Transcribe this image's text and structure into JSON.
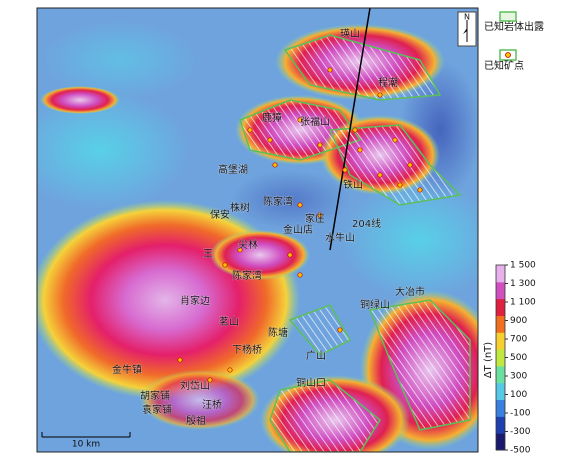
{
  "map": {
    "north": "N",
    "profile_label": "204线",
    "places": [
      "瑛山",
      "程潮",
      "鹿獐",
      "张福山",
      "尖林",
      "高堡湖",
      "铁山",
      "株树",
      "保安",
      "陈家湾",
      "家庄",
      "金山店",
      "水牛山",
      "王",
      "陈家湾",
      "肖家边",
      "茗山",
      "大冶市",
      "铜绿山",
      "陈塘",
      "下杨桥",
      "广山",
      "金牛镇",
      "刘岱山",
      "铜山口",
      "胡家铺",
      "袁家铺",
      "汪桥",
      "殷祖"
    ],
    "legend": {
      "intrusion": "已知岩体出露",
      "deposit": "已知矿点"
    },
    "scale_bar": "10 km",
    "colorbar": {
      "title": "ΔT (nT)",
      "range": [
        -500,
        1500
      ],
      "ticks": [
        {
          "value": 1500,
          "label": "1 500"
        },
        {
          "value": 1300,
          "label": "1 300"
        },
        {
          "value": 1100,
          "label": "1 100"
        },
        900,
        700,
        500,
        300,
        100,
        -100,
        -300,
        -500
      ]
    }
  }
}
